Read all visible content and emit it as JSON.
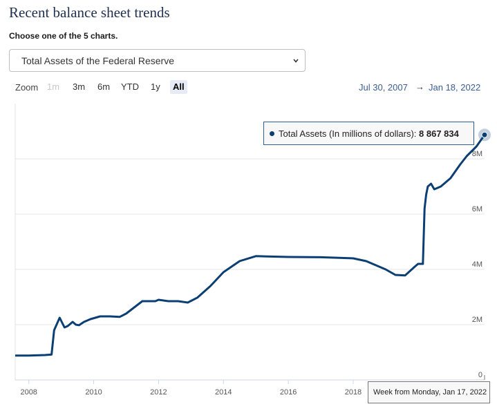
{
  "header": {
    "title": "Recent balance sheet trends",
    "subtitle": "Choose one of the 5 charts."
  },
  "selector": {
    "value": "Total Assets of the Federal Reserve"
  },
  "zoom": {
    "label": "Zoom",
    "buttons": [
      {
        "label": "1m",
        "state": "disabled"
      },
      {
        "label": "3m",
        "state": "normal"
      },
      {
        "label": "6m",
        "state": "normal"
      },
      {
        "label": "YTD",
        "state": "normal"
      },
      {
        "label": "1y",
        "state": "normal"
      },
      {
        "label": "All",
        "state": "active"
      }
    ]
  },
  "range": {
    "from": "Jul 30, 2007",
    "arrow": "→",
    "to": "Jan 18, 2022"
  },
  "tooltip": {
    "series_label": "Total Assets (In millions of dollars): ",
    "value": "8 867 834",
    "x_label": "Week from Monday, Jan 17, 2022"
  },
  "colors": {
    "line": "#0b3e73",
    "accent": "#3a5c94"
  },
  "chart_data": {
    "type": "line",
    "title": "Total Assets of the Federal Reserve",
    "series": [
      {
        "name": "Total Assets (In millions of dollars)",
        "x": [
          2007.58,
          2008.0,
          2008.5,
          2008.7,
          2008.78,
          2008.95,
          2009.1,
          2009.2,
          2009.35,
          2009.45,
          2009.55,
          2009.7,
          2009.9,
          2010.2,
          2010.5,
          2010.8,
          2011.0,
          2011.5,
          2011.9,
          2012.0,
          2012.3,
          2012.6,
          2012.9,
          2013.2,
          2013.6,
          2014.0,
          2014.5,
          2015.0,
          2016.0,
          2017.0,
          2018.0,
          2018.4,
          2019.0,
          2019.3,
          2019.6,
          2019.9,
          2020.0,
          2020.15,
          2020.2,
          2020.25,
          2020.3,
          2020.4,
          2020.5,
          2020.7,
          2021.0,
          2021.3,
          2021.5,
          2021.8,
          2022.05
        ],
        "values": [
          880000,
          880000,
          900000,
          920000,
          1800000,
          2250000,
          1900000,
          1950000,
          2100000,
          2000000,
          1980000,
          2100000,
          2200000,
          2300000,
          2300000,
          2280000,
          2400000,
          2850000,
          2850000,
          2900000,
          2850000,
          2850000,
          2800000,
          2980000,
          3400000,
          3900000,
          4300000,
          4480000,
          4450000,
          4440000,
          4400000,
          4300000,
          4000000,
          3800000,
          3780000,
          4100000,
          4200000,
          4200000,
          6200000,
          6700000,
          7000000,
          7100000,
          6900000,
          7000000,
          7300000,
          7800000,
          8100000,
          8450000,
          8867834
        ]
      }
    ],
    "xlim": [
      2007.58,
      2022.05
    ],
    "ylim": [
      0,
      10000000
    ],
    "x_ticks": [
      "2008",
      "2010",
      "2012",
      "2014",
      "2016",
      "2018"
    ],
    "x_tick_values": [
      2008,
      2010,
      2012,
      2014,
      2016,
      2018
    ],
    "y_ticks": [
      "0",
      "2M",
      "4M",
      "6M",
      "8M"
    ],
    "y_tick_values": [
      0,
      2000000,
      4000000,
      6000000,
      8000000
    ],
    "grid": true,
    "legend": "none"
  }
}
